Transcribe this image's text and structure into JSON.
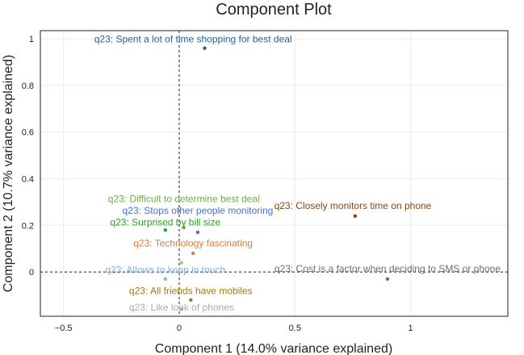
{
  "chart_data": {
    "type": "scatter",
    "title": "Component Plot",
    "xlabel": "Component 1 (14.0% variance explained)",
    "ylabel": "Component 2 (10.7% variance explained)",
    "xlim": [
      -0.6,
      1.42
    ],
    "ylim": [
      -0.19,
      1.035
    ],
    "xticks": [
      -0.5,
      0,
      0.5,
      1
    ],
    "yticks": [
      0,
      0.2,
      0.4,
      0.6,
      0.8,
      1
    ],
    "xtick_labels": [
      "−0.5",
      "0",
      "0.5",
      "1"
    ],
    "ytick_labels": [
      "0",
      "0.2",
      "0.4",
      "0.6",
      "0.8",
      "1"
    ],
    "grid": true,
    "reference_lines": {
      "x": 0,
      "y": 0
    },
    "points": [
      {
        "label": "q23: Spent a lot of time shopping for best deal",
        "x": 0.11,
        "y": 0.96,
        "color": "#2c5f96",
        "anchor": "middle",
        "label_x": 0.06,
        "label_y": 0.985
      },
      {
        "label": "q23: Closely monitors time on phone",
        "x": 0.76,
        "y": 0.24,
        "color": "#8b4513",
        "anchor": "middle",
        "label_x": 0.75,
        "label_y": 0.27
      },
      {
        "label": "q23: Difficult to determine best deal",
        "x": 0.02,
        "y": 0.19,
        "color": "#70ad47",
        "anchor": "middle",
        "label_x": 0.02,
        "label_y": 0.3
      },
      {
        "label": "q23: Stops other people monitoring",
        "x": 0.08,
        "y": 0.17,
        "color": "#4472c4",
        "anchor": "middle",
        "label_x": 0.08,
        "label_y": 0.25
      },
      {
        "label": "q23: Surprised by bill size",
        "x": -0.06,
        "y": 0.18,
        "color": "#1fa81f",
        "anchor": "middle",
        "label_x": -0.06,
        "label_y": 0.2
      },
      {
        "label": "q23: Technology fascinating",
        "x": 0.06,
        "y": 0.08,
        "color": "#e07b39",
        "anchor": "middle",
        "label_x": 0.06,
        "label_y": 0.11
      },
      {
        "label": "q23: Cost is a factor when deciding to SMS or phone",
        "x": 0.9,
        "y": -0.03,
        "color": "#6e6e6e",
        "anchor": "middle",
        "label_x": 0.9,
        "label_y": 0.0
      },
      {
        "label": "q23: Allows to keep in touch",
        "x": -0.06,
        "y": -0.03,
        "color": "#7fb3e0",
        "anchor": "middle",
        "label_x": -0.06,
        "label_y": -0.005
      },
      {
        "label": "q23: All friends have mobiles",
        "x": 0.05,
        "y": -0.12,
        "color": "#a07a10",
        "anchor": "middle",
        "label_x": 0.05,
        "label_y": -0.095
      },
      {
        "label": "q23: Like look of phones",
        "x": 0.01,
        "y": -0.16,
        "color": "#aaaaaa",
        "anchor": "middle",
        "label_x": 0.01,
        "label_y": -0.165
      },
      {
        "label": "",
        "x": 0.01,
        "y": 0.04,
        "color": "#a6c98a",
        "anchor": "middle",
        "label_x": 0.01,
        "label_y": 0.04
      }
    ]
  }
}
